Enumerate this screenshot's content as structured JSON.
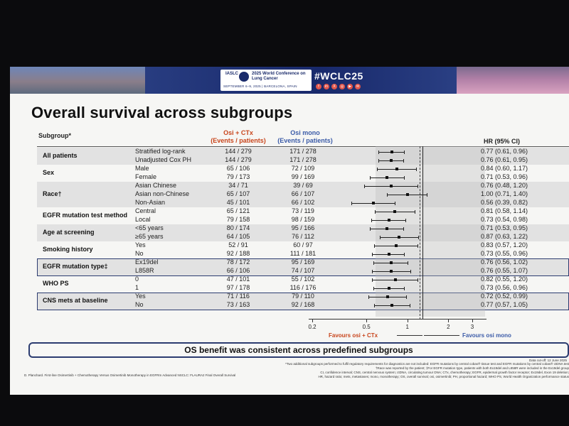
{
  "banner": {
    "org": "IASLC",
    "conference": "2025 World Conference on Lung Cancer",
    "dates_location": "SEPTEMBER 6–9, 2025 | BARCELONA, SPAIN",
    "hashtag": "#WCLC25",
    "social_icons": [
      "f",
      "in",
      "X",
      "◎",
      "▶",
      "✉"
    ],
    "colors": {
      "navy": "#1a2b6b",
      "social": "#e0554a"
    }
  },
  "title": "Overall survival across subgroups",
  "table": {
    "headers": {
      "subgroup": "Subgroup*",
      "osi_ctx": "Osi + CTx",
      "osi_ctx_sub": "(Events / patients)",
      "osi_mono": "Osi mono",
      "osi_mono_sub": "(Events / patients)",
      "hr": "HR (95% CI)"
    },
    "groups": [
      "All patients",
      "Sex",
      "Race†",
      "EGFR mutation test method",
      "Age at screening",
      "Smoking history",
      "EGFR mutation type‡",
      "WHO PS",
      "CNS mets at baseline"
    ],
    "rows": [
      {
        "sub": "Stratified log-rank",
        "ctx": "144 / 279",
        "mono": "171 / 278",
        "hr": "0.77 (0.61, 0.96)"
      },
      {
        "sub": "Unadjusted Cox PH",
        "ctx": "144 / 279",
        "mono": "171 / 278",
        "hr": "0.76 (0.61, 0.95)"
      },
      {
        "sub": "Male",
        "ctx": "65 / 106",
        "mono": "72 / 109",
        "hr": "0.84 (0.60, 1.17)"
      },
      {
        "sub": "Female",
        "ctx": "79 / 173",
        "mono": "99 / 169",
        "hr": "0.71 (0.53, 0.96)"
      },
      {
        "sub": "Asian Chinese",
        "ctx": "34 / 71",
        "mono": "39 / 69",
        "hr": "0.76 (0.48, 1.20)"
      },
      {
        "sub": "Asian non-Chinese",
        "ctx": "65 / 107",
        "mono": "66 / 107",
        "hr": "1.00 (0.71, 1.40)"
      },
      {
        "sub": "Non-Asian",
        "ctx": "45 / 101",
        "mono": "66 / 102",
        "hr": "0.56 (0.39, 0.82)"
      },
      {
        "sub": "Central",
        "ctx": "65 / 121",
        "mono": "73 / 119",
        "hr": "0.81 (0.58, 1.14)"
      },
      {
        "sub": "Local",
        "ctx": "79 / 158",
        "mono": "98 / 159",
        "hr": "0.73 (0.54, 0.98)"
      },
      {
        "sub": "<65 years",
        "ctx": "80 / 174",
        "mono": "95 / 166",
        "hr": "0.71 (0.53, 0.95)"
      },
      {
        "sub": "≥65 years",
        "ctx": "64 / 105",
        "mono": "76 / 112",
        "hr": "0.87 (0.63, 1.22)"
      },
      {
        "sub": "Yes",
        "ctx": "52 / 91",
        "mono": "60 / 97",
        "hr": "0.83 (0.57, 1.20)"
      },
      {
        "sub": "No",
        "ctx": "92 / 188",
        "mono": "111 / 181",
        "hr": "0.73 (0.55, 0.96)"
      },
      {
        "sub": "Ex19del",
        "ctx": "78 / 172",
        "mono": "95 / 169",
        "hr": "0.76 (0.56, 1.02)"
      },
      {
        "sub": "L858R",
        "ctx": "66 / 106",
        "mono": "74 / 107",
        "hr": "0.76 (0.55, 1.07)"
      },
      {
        "sub": "0",
        "ctx": "47 / 101",
        "mono": "55 / 102",
        "hr": "0.82 (0.55, 1.20)"
      },
      {
        "sub": "1",
        "ctx": "97 / 178",
        "mono": "116 / 176",
        "hr": "0.73 (0.56, 0.96)"
      },
      {
        "sub": "Yes",
        "ctx": "71 / 116",
        "mono": "79 / 110",
        "hr": "0.72 (0.52, 0.99)"
      },
      {
        "sub": "No",
        "ctx": "73 / 163",
        "mono": "92 / 168",
        "hr": "0.77 (0.57, 1.05)"
      }
    ]
  },
  "forest": {
    "ticks": [
      "0.2",
      "0.5",
      "1",
      "2",
      "3"
    ],
    "favours_left": "Favours osi + CTx",
    "favours_right": "Favours osi mono",
    "colors": {
      "left": "#c8451c",
      "right": "#3b5ba8"
    }
  },
  "summary": "OS benefit was consistent across predefined subgroups",
  "footnotes": {
    "cutoff": "Data cut-off: 12 June 2025",
    "left": "D. Planchard. First-line Osimertinib + Chemotherapy Versus Osimertinib Monotherapy in EGFRm Advanced NSCLC: FLAURA2 Final Overall Survival",
    "right1": "*Two additional subgroups performed to fulfil regulatory requirements for diagnostics are not included: EGFR mutations by central cobas® tissue test and EGFR mutations by central cobas® ctDNA test",
    "right2": "†Race was reported by the patient; ‡For EGFR mutation type, patients with both Ex19del and L858R were included in the Ex19del group",
    "right3": "CI, confidence interval; CNS, central nervous system; ctDNA, circulating tumour DNA; CTx, chemotherapy; EGFR, epidermal growth factor receptor; Ex19del, Exon 19 deletion;",
    "right4": "HR, hazard ratio; mets, metastases; mono, monotherapy; OS, overall survival; osi, osimertinib; PH, proportional hazard; WHO PS, World Health Organization performance status"
  }
}
